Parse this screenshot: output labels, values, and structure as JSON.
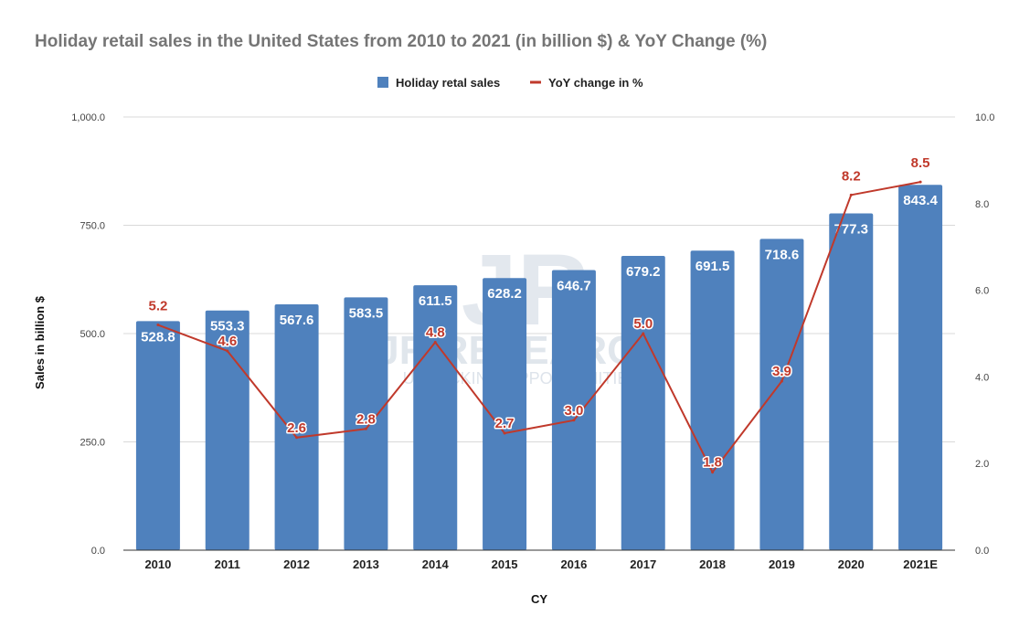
{
  "title": "Holiday retail sales in the United States from 2010 to 2021 (in billion $) & YoY Change (%)",
  "watermark": {
    "logo": "JR",
    "name": "JR RESEARCH",
    "tagline": "UNLOCKING OPPORTUNITIES"
  },
  "chart_data": {
    "type": "bar",
    "title": "Holiday retail sales in the United States from 2010 to 2021 (in billion $) & YoY Change (%)",
    "xlabel": "CY",
    "ylabel": "Sales in billion $",
    "categories": [
      "2010",
      "2011",
      "2012",
      "2013",
      "2014",
      "2015",
      "2016",
      "2017",
      "2018",
      "2019",
      "2020",
      "2021E"
    ],
    "series": [
      {
        "name": "Holiday retal sales",
        "type": "bar",
        "axis": "left",
        "color": "#4f81bd",
        "values": [
          528.8,
          553.3,
          567.6,
          583.5,
          611.5,
          628.2,
          646.7,
          679.2,
          691.5,
          718.6,
          777.3,
          843.4
        ],
        "labels": [
          "528.8",
          "553.3",
          "567.6",
          "583.5",
          "611.5",
          "628.2",
          "646.7",
          "679.2",
          "691.5",
          "718.6",
          "777.3",
          "843.4"
        ]
      },
      {
        "name": "YoY change in %",
        "type": "line",
        "axis": "right",
        "color": "#c0392b",
        "values": [
          5.2,
          4.6,
          2.6,
          2.8,
          4.8,
          2.7,
          3.0,
          5.0,
          1.8,
          3.9,
          8.2,
          8.5
        ],
        "labels": [
          "5.2",
          "4.6",
          "2.6",
          "2.8",
          "4.8",
          "2.7",
          "3.0",
          "5.0",
          "1.8",
          "3.9",
          "8.2",
          "8.5"
        ]
      }
    ],
    "ylim": [
      0,
      1000
    ],
    "y2lim": [
      0,
      10
    ],
    "yticks": [
      "0.0",
      "250.0",
      "500.0",
      "750.0",
      "1,000.0"
    ],
    "y2ticks": [
      "0.0",
      "2.0",
      "4.0",
      "6.0",
      "8.0",
      "10.0"
    ],
    "grid": true,
    "legend": "top-center"
  }
}
